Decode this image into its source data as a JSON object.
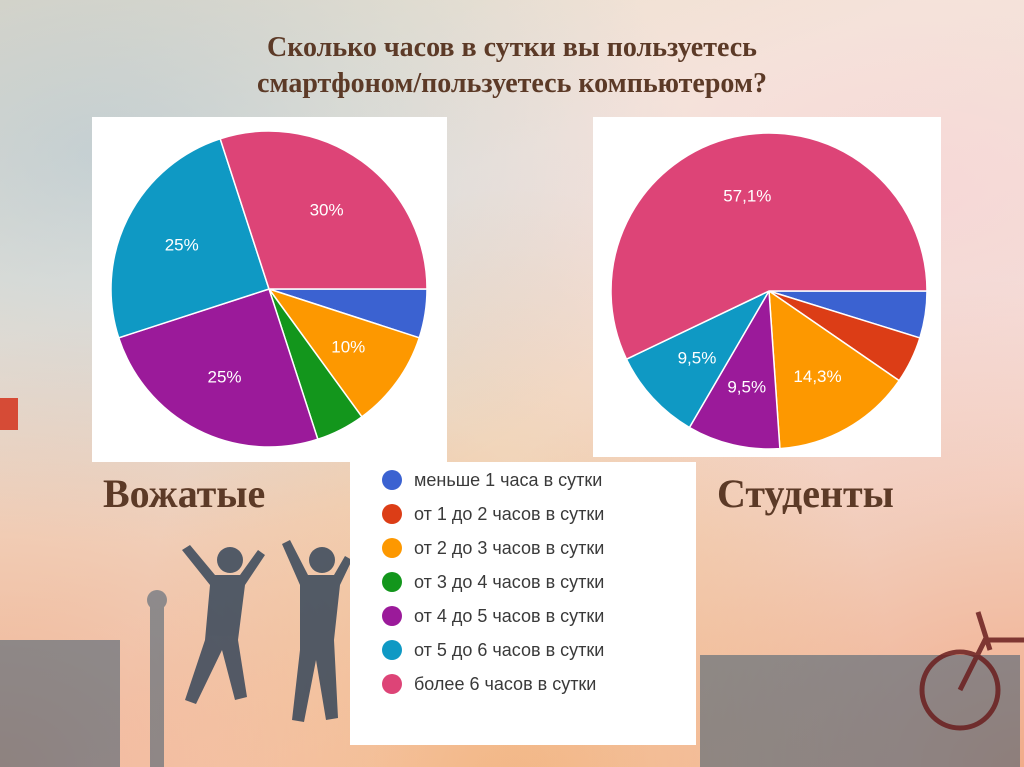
{
  "title": {
    "line1": "Сколько часов в сутки вы пользуетесь",
    "line2": "смартфоном/пользуетесь компьютером?"
  },
  "legend": [
    {
      "label": "меньше 1 часа в сутки",
      "color": "#3b62d1"
    },
    {
      "label": "от 1 до 2 часов в сутки",
      "color": "#dc3d16"
    },
    {
      "label": "от 2 до 3 часов в сутки",
      "color": "#fd9800"
    },
    {
      "label": "от 3 до 4 часов в сутки",
      "color": "#13961c"
    },
    {
      "label": "от 4 до 5 часов в сутки",
      "color": "#9b1a9a"
    },
    {
      "label": "от 5 до 6 часов в сутки",
      "color": "#0f99c4"
    },
    {
      "label": "более 6 часов в сутки",
      "color": "#dd4477"
    }
  ],
  "chart_data": [
    {
      "type": "pie",
      "title": "Вожатые",
      "categories": [
        "меньше 1 часа в сутки",
        "от 1 до 2 часов в сутки",
        "от 2 до 3 часов в сутки",
        "от 3 до 4 часов в сутки",
        "от 4 до 5 часов в сутки",
        "от 5 до 6 часов в сутки",
        "более 6 часов в сутки"
      ],
      "values": [
        5,
        0,
        10,
        5,
        25,
        25,
        30
      ],
      "labels": [
        "",
        "",
        "10%",
        "",
        "25%",
        "25%",
        "30%"
      ]
    },
    {
      "type": "pie",
      "title": "Студенты",
      "categories": [
        "меньше 1 часа в сутки",
        "от 1 до 2 часов в сутки",
        "от 2 до 3 часов в сутки",
        "от 3 до 4 часов в сутки",
        "от 4 до 5 часов в сутки",
        "от 5 до 6 часов в сутки",
        "более 6 часов в сутки"
      ],
      "values": [
        4.8,
        4.8,
        14.3,
        0,
        9.5,
        9.5,
        57.1
      ],
      "labels": [
        "",
        "",
        "14,3%",
        "",
        "9,5%",
        "9,5%",
        "57,1%"
      ]
    }
  ]
}
